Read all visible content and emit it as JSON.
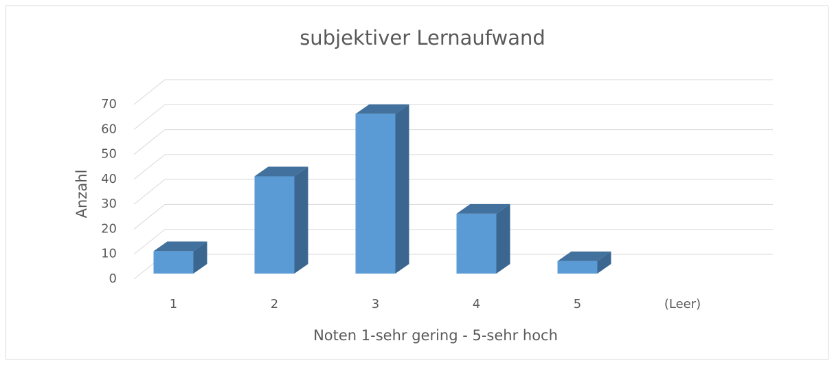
{
  "chart_data": {
    "type": "bar3d",
    "title": "subjektiver Lernaufwand",
    "x_label": "Noten 1-sehr gering - 5-sehr hoch",
    "y_label": "Anzahl",
    "categories": [
      "1",
      "2",
      "3",
      "4",
      "5",
      "(Leer)"
    ],
    "values": [
      9,
      39,
      64,
      24,
      5,
      null
    ],
    "color": "#5b9bd5",
    "ylim": [
      0,
      70
    ],
    "yticks": [
      0,
      10,
      20,
      30,
      40,
      50,
      60,
      70
    ],
    "grid": true
  }
}
